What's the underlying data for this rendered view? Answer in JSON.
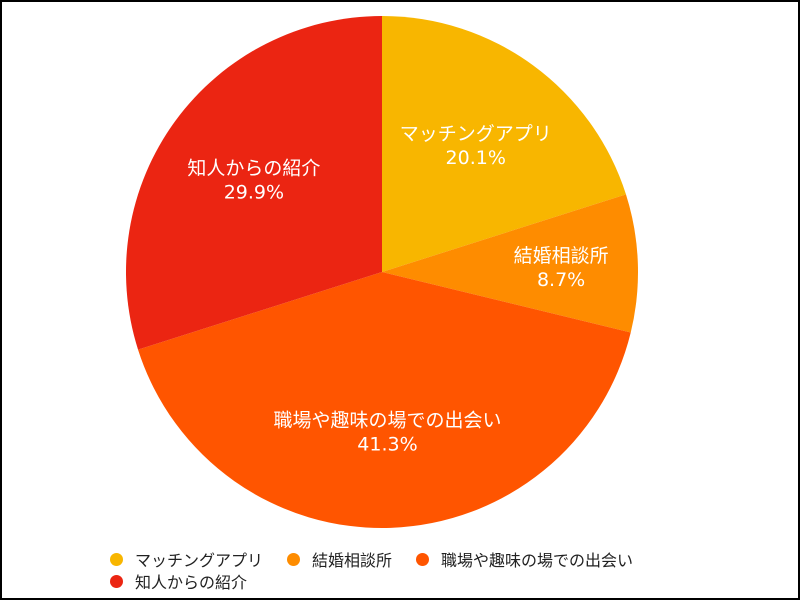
{
  "chart_data": {
    "type": "pie",
    "title": "",
    "slices": [
      {
        "label": "マッチングアプリ",
        "value": 20.1,
        "value_text": "20.1%",
        "color": "#F8B600"
      },
      {
        "label": "結婚相談所",
        "value": 8.7,
        "value_text": "8.7%",
        "color": "#FE8C00"
      },
      {
        "label": "職場や趣味の場での出会い",
        "value": 41.3,
        "value_text": "41.3%",
        "color": "#FF5500"
      },
      {
        "label": "知人からの紹介",
        "value": 29.9,
        "value_text": "29.9%",
        "color": "#EB2512"
      }
    ],
    "start": "top",
    "direction": "clockwise",
    "legend": {
      "position": "bottom",
      "rows": [
        [
          "マッチングアプリ",
          "結婚相談所",
          "職場や趣味の場での出会い"
        ],
        [
          "知人からの紹介"
        ]
      ]
    },
    "label_color": "#FFFFFF"
  }
}
